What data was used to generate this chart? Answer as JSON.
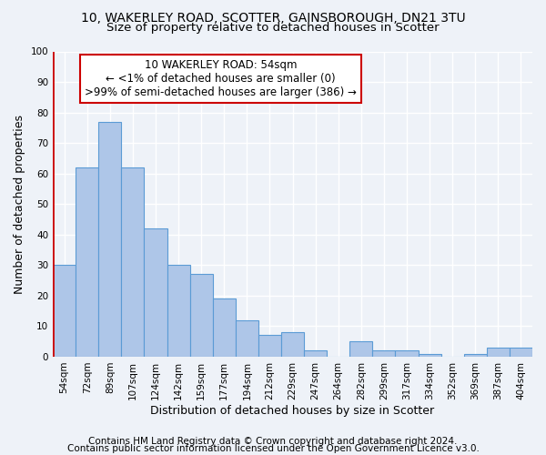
{
  "title_line1": "10, WAKERLEY ROAD, SCOTTER, GAINSBOROUGH, DN21 3TU",
  "title_line2": "Size of property relative to detached houses in Scotter",
  "xlabel": "Distribution of detached houses by size in Scotter",
  "ylabel": "Number of detached properties",
  "categories": [
    "54sqm",
    "72sqm",
    "89sqm",
    "107sqm",
    "124sqm",
    "142sqm",
    "159sqm",
    "177sqm",
    "194sqm",
    "212sqm",
    "229sqm",
    "247sqm",
    "264sqm",
    "282sqm",
    "299sqm",
    "317sqm",
    "334sqm",
    "352sqm",
    "369sqm",
    "387sqm",
    "404sqm"
  ],
  "values": [
    30,
    62,
    77,
    62,
    42,
    30,
    27,
    19,
    12,
    7,
    8,
    2,
    0,
    5,
    2,
    2,
    1,
    0,
    1,
    3,
    3
  ],
  "bar_color": "#aec6e8",
  "bar_edge_color": "#5b9bd5",
  "annotation_line1": "10 WAKERLEY ROAD: 54sqm",
  "annotation_line2": "← <1% of detached houses are smaller (0)",
  "annotation_line3": ">99% of semi-detached houses are larger (386) →",
  "ylim": [
    0,
    100
  ],
  "yticks": [
    0,
    10,
    20,
    30,
    40,
    50,
    60,
    70,
    80,
    90,
    100
  ],
  "footer1": "Contains HM Land Registry data © Crown copyright and database right 2024.",
  "footer2": "Contains public sector information licensed under the Open Government Licence v3.0.",
  "bg_color": "#eef2f8",
  "plot_bg_color": "#eef2f8",
  "grid_color": "#ffffff",
  "annotation_box_facecolor": "#ffffff",
  "annotation_box_edgecolor": "#cc0000",
  "title_fontsize": 10,
  "subtitle_fontsize": 9.5,
  "tick_fontsize": 7.5,
  "label_fontsize": 9,
  "annotation_fontsize": 8.5,
  "footer_fontsize": 7.5
}
